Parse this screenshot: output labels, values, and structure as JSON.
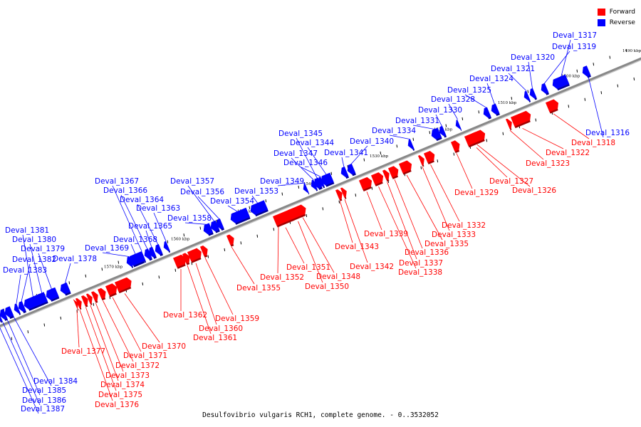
{
  "title": "Desulfovibrio vulgaris RCH1, complete genome. - 0..3532052",
  "legend": [
    {
      "label": "Forward",
      "color": "#ff0000"
    },
    {
      "label": "Reverse",
      "color": "#0000ff"
    }
  ],
  "colors": {
    "forward": "#ff0000",
    "reverse": "#0000ff",
    "backbone": "#888888",
    "tick": "#000000"
  },
  "ticks": [
    "1490 kbp",
    "1500 kbp",
    "1510 kbp",
    "1520 kbp",
    "1530 kbp",
    "1540 kbp",
    "1550 kbp",
    "1560 kbp",
    "1570 kbp",
    "1580 kbp"
  ],
  "genes": [
    {
      "name": "Deval_1316",
      "strand": "reverse"
    },
    {
      "name": "Deval_1317",
      "strand": "reverse"
    },
    {
      "name": "Deval_1318",
      "strand": "forward"
    },
    {
      "name": "Deval_1319",
      "strand": "reverse"
    },
    {
      "name": "Deval_1320",
      "strand": "reverse"
    },
    {
      "name": "Deval_1321",
      "strand": "reverse"
    },
    {
      "name": "Deval_1322",
      "strand": "forward"
    },
    {
      "name": "Deval_1323",
      "strand": "forward"
    },
    {
      "name": "Deval_1324",
      "strand": "reverse"
    },
    {
      "name": "Deval_1325",
      "strand": "reverse"
    },
    {
      "name": "Deval_1326",
      "strand": "forward"
    },
    {
      "name": "Deval_1327",
      "strand": "forward"
    },
    {
      "name": "Deval_1328",
      "strand": "reverse"
    },
    {
      "name": "Deval_1329",
      "strand": "forward"
    },
    {
      "name": "Deval_1330",
      "strand": "reverse"
    },
    {
      "name": "Deval_1331",
      "strand": "reverse"
    },
    {
      "name": "Deval_1332",
      "strand": "forward"
    },
    {
      "name": "Deval_1333",
      "strand": "forward"
    },
    {
      "name": "Deval_1334",
      "strand": "reverse"
    },
    {
      "name": "Deval_1335",
      "strand": "forward"
    },
    {
      "name": "Deval_1336",
      "strand": "forward"
    },
    {
      "name": "Deval_1337",
      "strand": "forward"
    },
    {
      "name": "Deval_1338",
      "strand": "forward"
    },
    {
      "name": "Deval_1339",
      "strand": "forward"
    },
    {
      "name": "Deval_1340",
      "strand": "reverse"
    },
    {
      "name": "Deval_1341",
      "strand": "reverse"
    },
    {
      "name": "Deval_1342",
      "strand": "forward"
    },
    {
      "name": "Deval_1343",
      "strand": "forward"
    },
    {
      "name": "Deval_1344",
      "strand": "reverse"
    },
    {
      "name": "Deval_1345",
      "strand": "reverse"
    },
    {
      "name": "Deval_1346",
      "strand": "reverse"
    },
    {
      "name": "Deval_1347",
      "strand": "reverse"
    },
    {
      "name": "Deval_1348",
      "strand": "forward"
    },
    {
      "name": "Deval_1349",
      "strand": "reverse"
    },
    {
      "name": "Deval_1350",
      "strand": "forward"
    },
    {
      "name": "Deval_1351",
      "strand": "forward"
    },
    {
      "name": "Deval_1352",
      "strand": "forward"
    },
    {
      "name": "Deval_1353",
      "strand": "reverse"
    },
    {
      "name": "Deval_1354",
      "strand": "reverse"
    },
    {
      "name": "Deval_1355",
      "strand": "forward"
    },
    {
      "name": "Deval_1356",
      "strand": "reverse"
    },
    {
      "name": "Deval_1357",
      "strand": "reverse"
    },
    {
      "name": "Deval_1358",
      "strand": "reverse"
    },
    {
      "name": "Deval_1359",
      "strand": "forward"
    },
    {
      "name": "Deval_1360",
      "strand": "forward"
    },
    {
      "name": "Deval_1361",
      "strand": "forward"
    },
    {
      "name": "Deval_1362",
      "strand": "forward"
    },
    {
      "name": "Deval_1363",
      "strand": "reverse"
    },
    {
      "name": "Deval_1364",
      "strand": "reverse"
    },
    {
      "name": "Deval_1365",
      "strand": "reverse"
    },
    {
      "name": "Deval_1366",
      "strand": "reverse"
    },
    {
      "name": "Deval_1367",
      "strand": "reverse"
    },
    {
      "name": "Deval_1368",
      "strand": "reverse"
    },
    {
      "name": "Deval_1369",
      "strand": "reverse"
    },
    {
      "name": "Deval_1370",
      "strand": "forward"
    },
    {
      "name": "Deval_1371",
      "strand": "forward"
    },
    {
      "name": "Deval_1372",
      "strand": "forward"
    },
    {
      "name": "Deval_1373",
      "strand": "forward"
    },
    {
      "name": "Deval_1374",
      "strand": "forward"
    },
    {
      "name": "Deval_1375",
      "strand": "forward"
    },
    {
      "name": "Deval_1376",
      "strand": "forward"
    },
    {
      "name": "Deval_1377",
      "strand": "forward"
    },
    {
      "name": "Deval_1378",
      "strand": "reverse"
    },
    {
      "name": "Deval_1379",
      "strand": "reverse"
    },
    {
      "name": "Deval_1380",
      "strand": "reverse"
    },
    {
      "name": "Deval_1381",
      "strand": "reverse"
    },
    {
      "name": "Deval_1382",
      "strand": "reverse"
    },
    {
      "name": "Deval_1383",
      "strand": "reverse"
    },
    {
      "name": "Deval_1384",
      "strand": "reverse"
    },
    {
      "name": "Deval_1385",
      "strand": "reverse"
    },
    {
      "name": "Deval_1386",
      "strand": "reverse"
    },
    {
      "name": "Deval_1387",
      "strand": "reverse"
    }
  ]
}
